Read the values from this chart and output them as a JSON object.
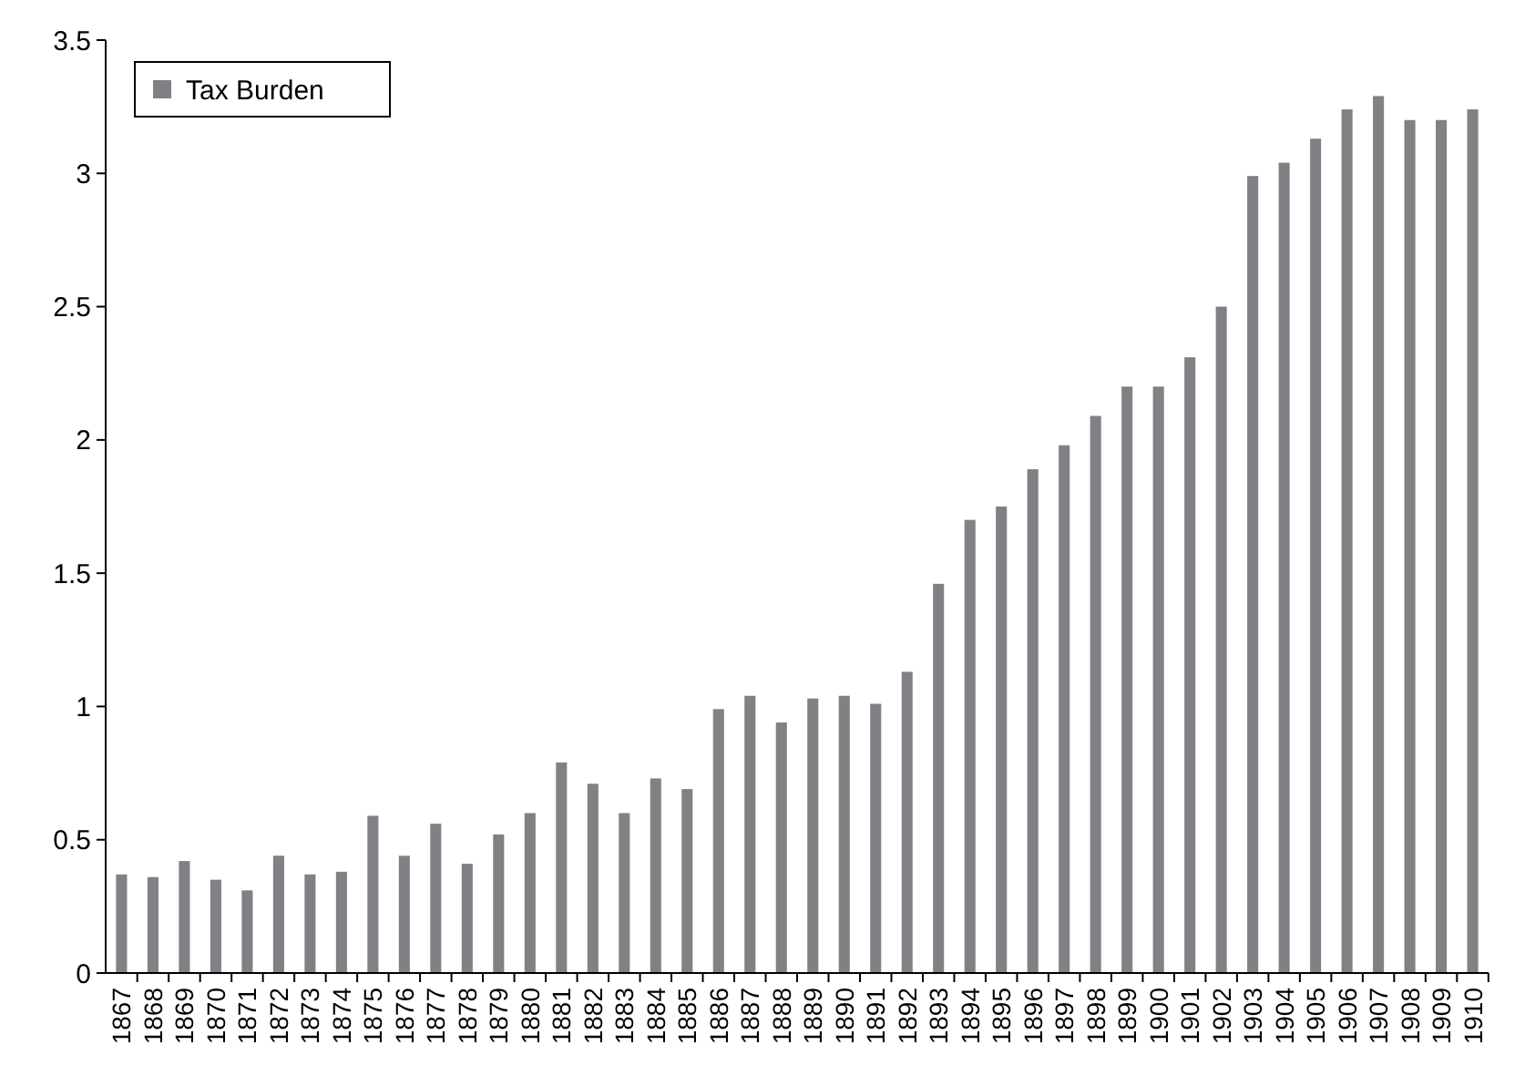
{
  "chart_data": {
    "type": "bar",
    "categories": [
      "1867",
      "1868",
      "1869",
      "1870",
      "1871",
      "1872",
      "1873",
      "1874",
      "1875",
      "1876",
      "1877",
      "1878",
      "1879",
      "1880",
      "1881",
      "1882",
      "1883",
      "1884",
      "1885",
      "1886",
      "1887",
      "1888",
      "1889",
      "1890",
      "1891",
      "1892",
      "1893",
      "1894",
      "1895",
      "1896",
      "1897",
      "1898",
      "1899",
      "1900",
      "1901",
      "1902",
      "1903",
      "1904",
      "1905",
      "1906",
      "1907",
      "1908",
      "1909",
      "1910"
    ],
    "series": [
      {
        "name": "Tax Burden",
        "color": "#808085",
        "values": [
          0.37,
          0.36,
          0.42,
          0.35,
          0.31,
          0.44,
          0.37,
          0.38,
          0.59,
          0.44,
          0.56,
          0.41,
          0.52,
          0.6,
          0.79,
          0.71,
          0.6,
          0.73,
          0.69,
          0.99,
          1.04,
          0.94,
          1.03,
          1.04,
          1.01,
          1.13,
          1.46,
          1.7,
          1.75,
          1.89,
          1.98,
          2.09,
          2.2,
          2.2,
          2.31,
          2.5,
          2.99,
          3.04,
          3.13,
          3.24,
          3.29,
          3.2,
          3.2,
          3.24
        ]
      }
    ],
    "ylim": [
      0,
      3.5
    ],
    "yticks": [
      0,
      0.5,
      1,
      1.5,
      2,
      2.5,
      3,
      3.5
    ],
    "grid": false,
    "legend": "top left"
  }
}
